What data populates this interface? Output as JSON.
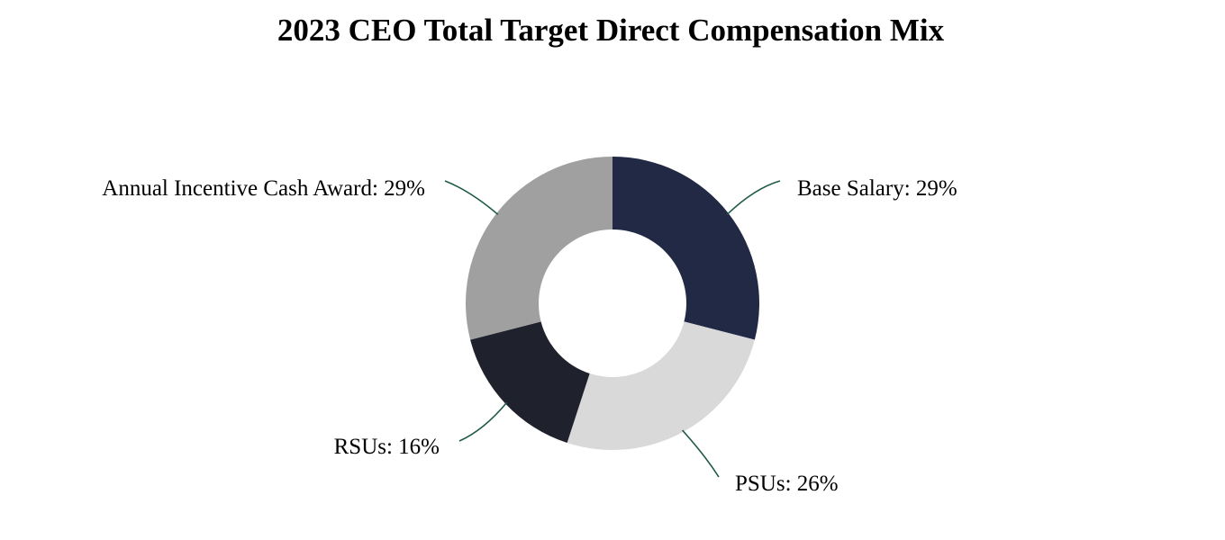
{
  "chart_data": {
    "type": "pie",
    "variant": "donut",
    "title": "2023 CEO Total Target Direct Compensation Mix",
    "slices": [
      {
        "label": "Base Salary",
        "value": 29,
        "display": "Base Salary: 29%",
        "color": "#212945"
      },
      {
        "label": "PSUs",
        "value": 26,
        "display": "PSUs: 26%",
        "color": "#d9d9d9"
      },
      {
        "label": "RSUs",
        "value": 16,
        "display": "RSUs: 16%",
        "color": "#1f212d"
      },
      {
        "label": "Annual Incentive Cash Award",
        "value": 29,
        "display": "Annual Incentive Cash Award: 29%",
        "color": "#a0a0a0"
      }
    ],
    "start_angle": "12 o'clock",
    "direction": "clockwise",
    "legend": "none",
    "labels": "outside with leader lines",
    "leader_line_color": "#1e5a46"
  }
}
